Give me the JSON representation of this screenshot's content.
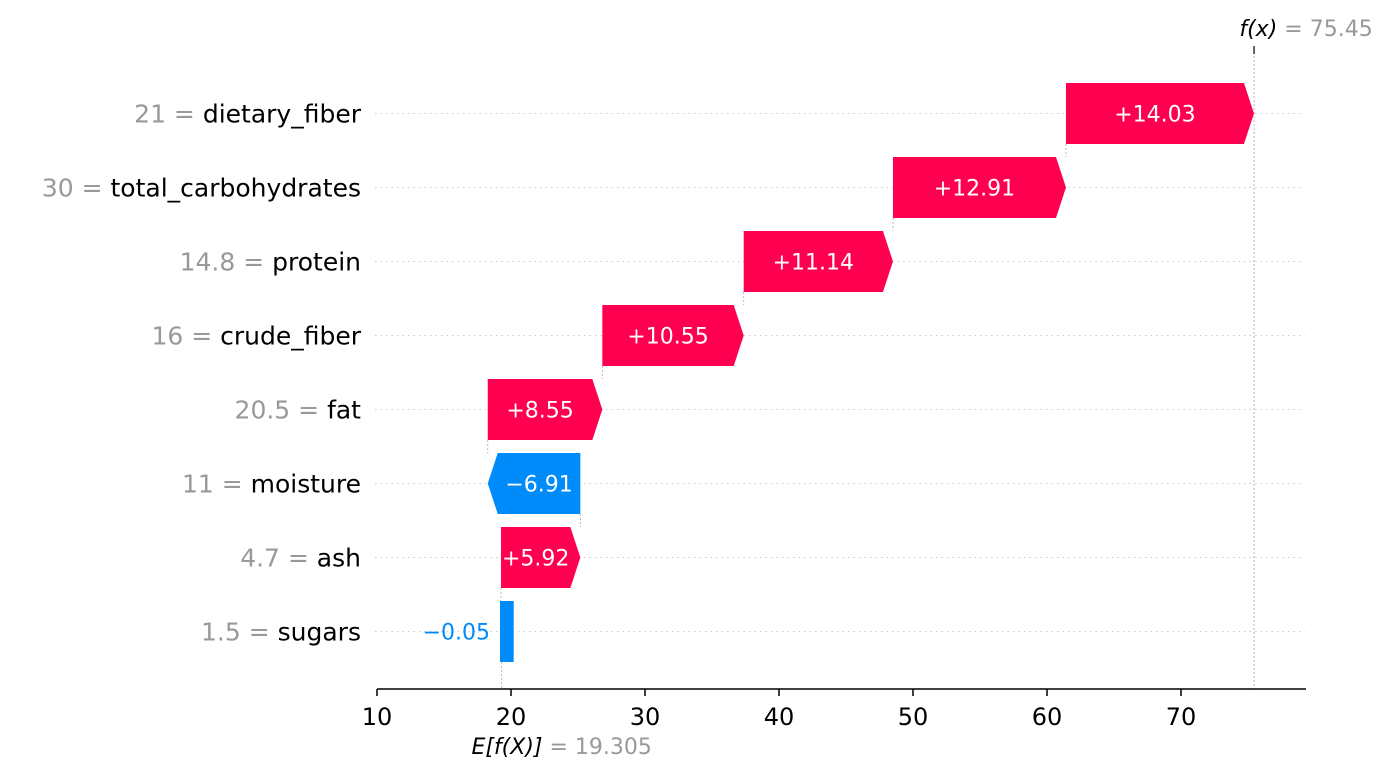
{
  "chart_data": {
    "type": "waterfall",
    "base_value": 19.305,
    "output_value": 75.45,
    "base_label_prefix": "E[f(X)]",
    "base_label_value": "= 19.305",
    "output_label_prefix": "f(x)",
    "output_label_value": "= 75.45",
    "features": [
      {
        "feature_value": "21",
        "name": "dietary_fiber",
        "contribution": 14.03,
        "label": "+14.03"
      },
      {
        "feature_value": "30",
        "name": "total_carbohydrates",
        "contribution": 12.91,
        "label": "+12.91"
      },
      {
        "feature_value": "14.8",
        "name": "protein",
        "contribution": 11.14,
        "label": "+11.14"
      },
      {
        "feature_value": "16",
        "name": "crude_fiber",
        "contribution": 10.55,
        "label": "+10.55"
      },
      {
        "feature_value": "20.5",
        "name": "fat",
        "contribution": 8.55,
        "label": "+8.55"
      },
      {
        "feature_value": "11",
        "name": "moisture",
        "contribution": -6.91,
        "label": "−6.91"
      },
      {
        "feature_value": "4.7",
        "name": "ash",
        "contribution": 5.92,
        "label": "+5.92"
      },
      {
        "feature_value": "1.5",
        "name": "sugars",
        "contribution": -0.05,
        "label": "−0.05"
      }
    ],
    "x_ticks": [
      10,
      20,
      30,
      40,
      50,
      60,
      70
    ],
    "xlim": [
      10,
      79
    ],
    "colors": {
      "positive": "#ff0051",
      "negative": "#008bfb",
      "label_gray": "#999999",
      "text": "#000000",
      "bar_text": "#ffffff",
      "gridline": "#cccccc"
    }
  }
}
